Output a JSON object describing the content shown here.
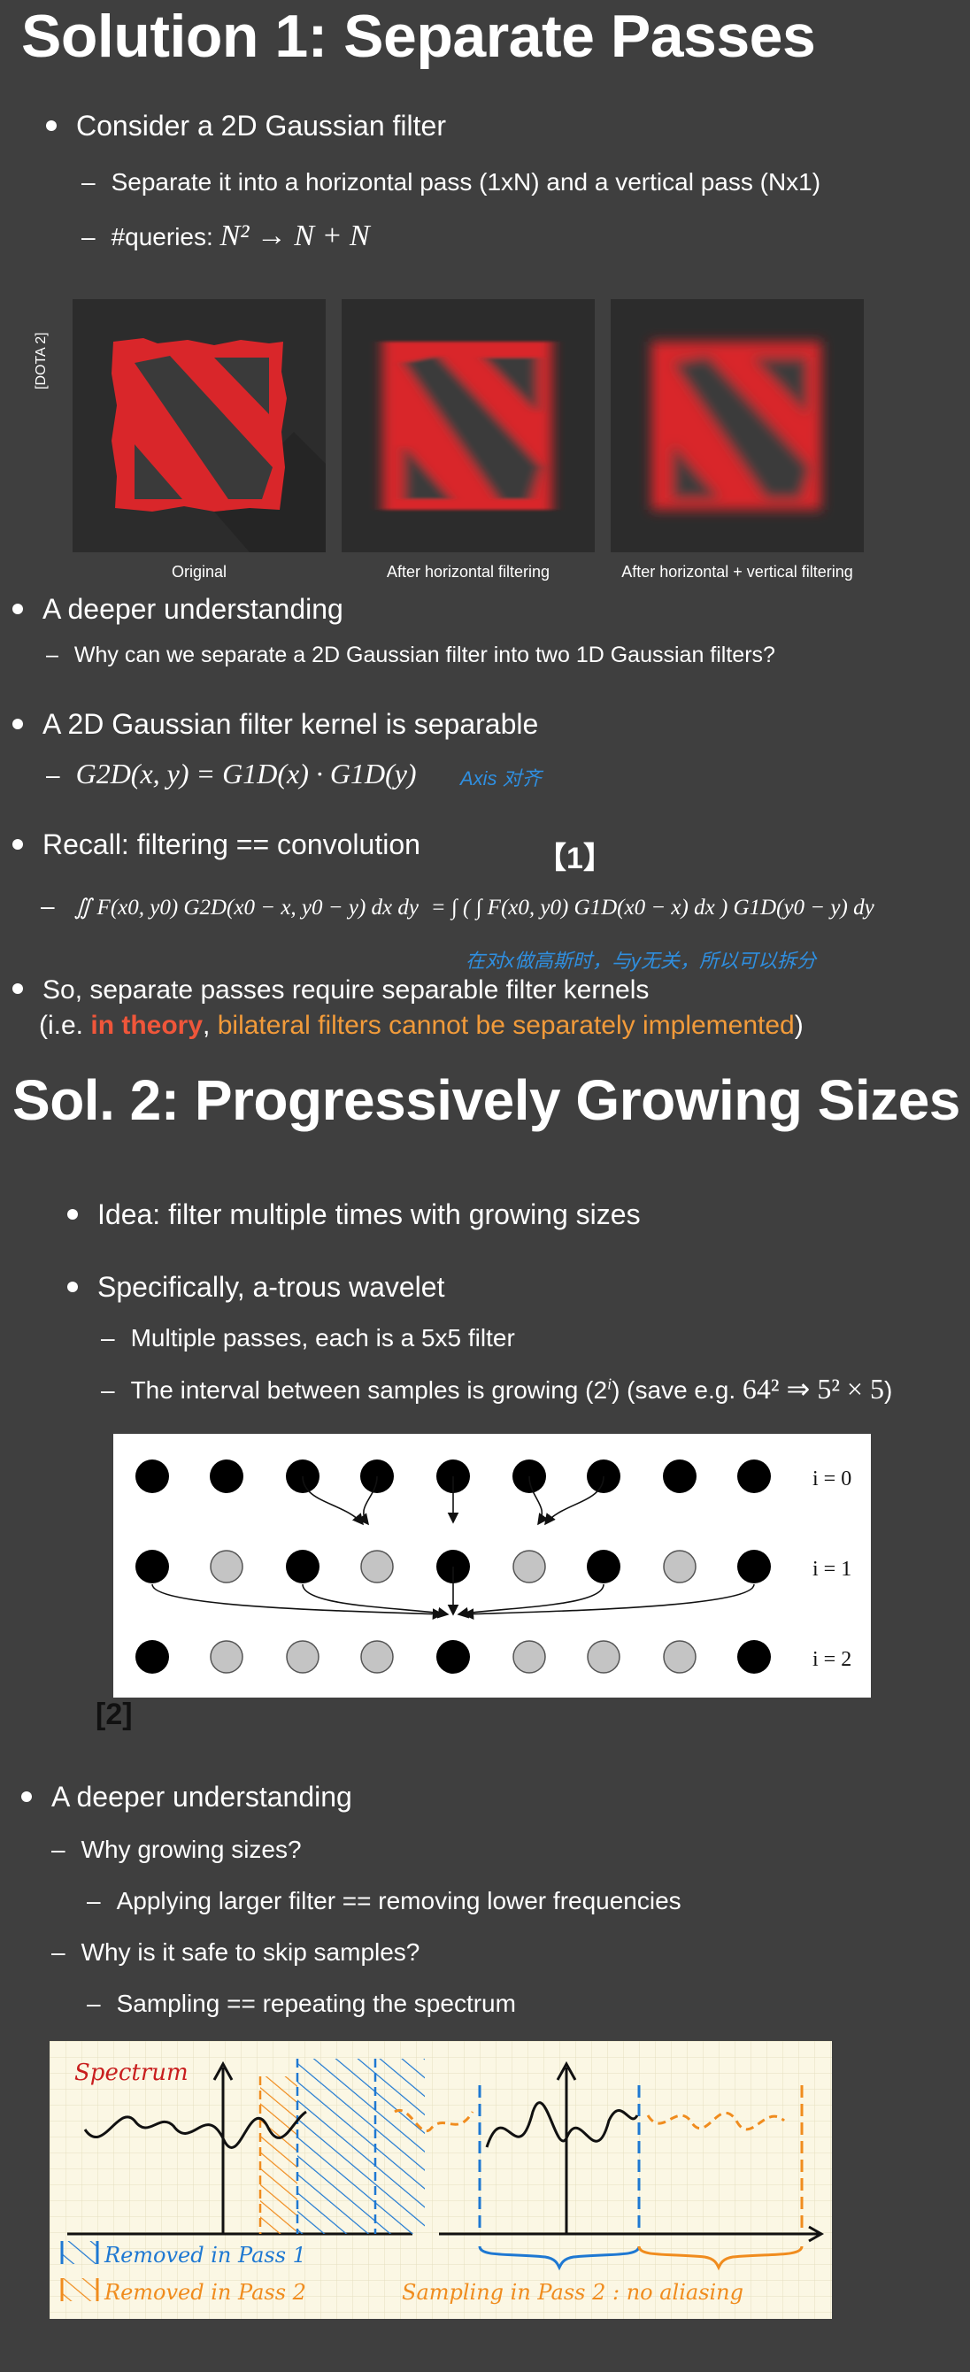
{
  "slide1": {
    "title": "Solution 1: Separate Passes",
    "bullet1": "Consider a 2D Gaussian filter",
    "sub1": "Separate it into a horizontal pass (1xN) and a vertical pass (Nx1)",
    "sub2_prefix": "#queries: ",
    "sub2_math": "N² → N + N",
    "side_label": "[DOTA 2]",
    "captions": [
      "Original",
      "After horizontal filtering",
      "After horizontal + vertical filtering"
    ],
    "bullet2": "A deeper understanding",
    "sub3": "Why can we separate a 2D Gaussian filter into two 1D Gaussian filters?",
    "bullet3": "A 2D Gaussian filter kernel is separable",
    "eq1": "G2D(x, y) = G1D(x) · G1D(y)",
    "note1": "Axis 对齐",
    "bullet4": "Recall: filtering == convolution",
    "ref1": "【1】",
    "eq2_left": "∬ F(x0, y0) G2D(x0 − x, y0 − y) dx dy",
    "eq2_right": "= ∫ ( ∫ F(x0, y0) G1D(x0 − x) dx ) G1D(y0 − y) dy",
    "note2": "在对x做高斯时，与y无关，所以可以拆分",
    "bullet5": "So, separate passes require separable filter kernels",
    "bullet5b_open": "(i.e. ",
    "bullet5b_red": "in theory",
    "bullet5b_comma": ", ",
    "bullet5b_orange": "bilateral filters cannot be separately implemented",
    "bullet5b_close": ")"
  },
  "slide2": {
    "title": "Sol. 2: Progressively Growing Sizes",
    "bullet1": "Idea: filter multiple times with growing sizes",
    "bullet2": "Specifically, a-trous wavelet",
    "sub1": "Multiple passes, each is a 5x5 filter",
    "sub2_text": "The interval between samples is growing (2",
    "sub2_sup": "i",
    "sub2_mid": ") (save e.g. ",
    "sub2_math": "64² ⇒ 5² × 5",
    "sub2_end": ")",
    "rows": [
      "i = 0",
      "i = 1",
      "i = 2"
    ],
    "ref2": "[2]"
  },
  "slide3": {
    "bullet1": "A deeper understanding",
    "sub1": "Why growing sizes?",
    "subsub1": "Applying larger filter == removing lower frequencies",
    "sub2": "Why is it safe to skip samples?",
    "subsub2": "Sampling == repeating the spectrum",
    "sketch": {
      "spectrum": "Spectrum",
      "legend1": "Removed in Pass 1",
      "legend2": "Removed in Pass 2",
      "caption": "Sampling in Pass 2 : no aliasing",
      "colors": {
        "red": "#c81e1e",
        "blue": "#1e78d2",
        "orange": "#f08c1e",
        "ink": "#111111"
      }
    }
  }
}
